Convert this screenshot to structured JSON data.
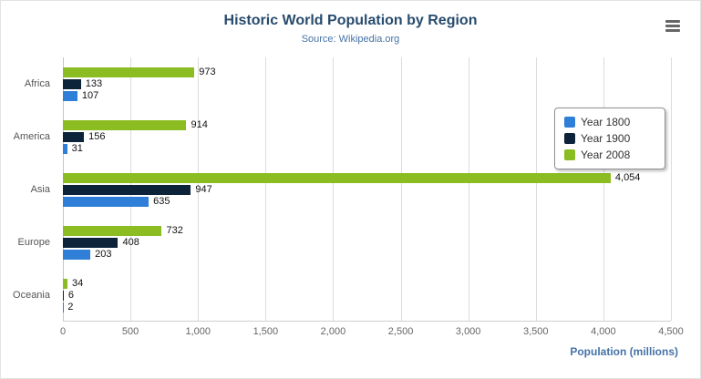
{
  "chart_data": {
    "type": "bar",
    "orientation": "horizontal",
    "title": "Historic World Population by Region",
    "subtitle": "Source: Wikipedia.org",
    "categories": [
      "Africa",
      "America",
      "Asia",
      "Europe",
      "Oceania"
    ],
    "series": [
      {
        "name": "Year 1800",
        "color": "#2f7ed8",
        "values": [
          107,
          31,
          635,
          203,
          2
        ]
      },
      {
        "name": "Year 1900",
        "color": "#0d233a",
        "values": [
          133,
          156,
          947,
          408,
          6
        ]
      },
      {
        "name": "Year 2008",
        "color": "#8bbc21",
        "values": [
          973,
          914,
          4054,
          732,
          34
        ]
      }
    ],
    "xlabel": "Population (millions)",
    "xlim": [
      0,
      4500
    ],
    "xticks": [
      0,
      500,
      1000,
      1500,
      2000,
      2500,
      3000,
      3500,
      4000,
      4500
    ],
    "grid": true,
    "legend_position": "right",
    "data_labels": true
  },
  "ui": {
    "export_menu_icon": "hamburger-menu-icon",
    "title_color": "#274b6d",
    "subtitle_color": "#4572a7",
    "axis_title_color": "#4572a7",
    "legend_border_color": "#909090",
    "legend_background": "#ffffff",
    "gridline_color": "#dcdcdc"
  }
}
